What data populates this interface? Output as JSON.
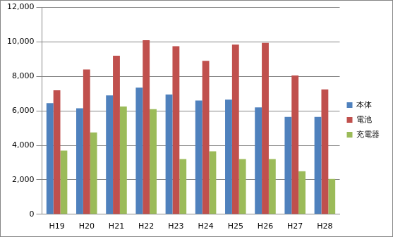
{
  "chart_data": {
    "type": "bar",
    "categories": [
      "H19",
      "H20",
      "H21",
      "H22",
      "H23",
      "H24",
      "H25",
      "H26",
      "H27",
      "H28"
    ],
    "series": [
      {
        "name": "本体",
        "color": "#4f81bd",
        "values": [
          6450,
          6150,
          6900,
          7350,
          6950,
          6600,
          6650,
          6200,
          5650,
          5650
        ]
      },
      {
        "name": "電池",
        "color": "#c0504d",
        "values": [
          7200,
          8400,
          9200,
          10100,
          9750,
          8900,
          9850,
          9950,
          8050,
          7250
        ]
      },
      {
        "name": "充電器",
        "color": "#9bbb59",
        "values": [
          3700,
          4750,
          6250,
          6100,
          3200,
          3650,
          3200,
          3200,
          2500,
          2050
        ]
      }
    ],
    "ylim": [
      0,
      12000
    ],
    "yticks": [
      0,
      {
        "value": 2000,
        "label": "2,000"
      },
      {
        "value": 4000,
        "label": "4,000"
      },
      {
        "value": 6000,
        "label": "6,000"
      },
      {
        "value": 8000,
        "label": "8,000"
      },
      {
        "value": 10000,
        "label": "10,000"
      },
      {
        "value": 12000,
        "label": "12,000"
      }
    ],
    "grid": true,
    "legend": "right"
  }
}
